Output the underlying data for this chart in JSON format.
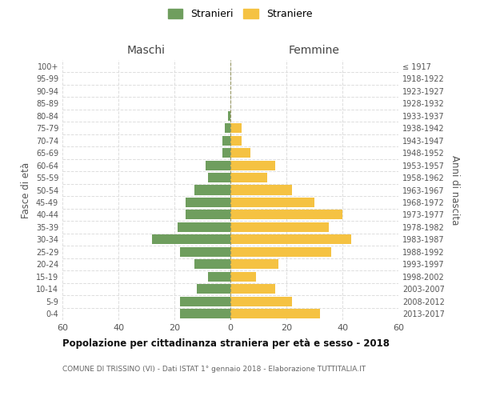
{
  "age_groups": [
    "0-4",
    "5-9",
    "10-14",
    "15-19",
    "20-24",
    "25-29",
    "30-34",
    "35-39",
    "40-44",
    "45-49",
    "50-54",
    "55-59",
    "60-64",
    "65-69",
    "70-74",
    "75-79",
    "80-84",
    "85-89",
    "90-94",
    "95-99",
    "100+"
  ],
  "birth_years": [
    "2013-2017",
    "2008-2012",
    "2003-2007",
    "1998-2002",
    "1993-1997",
    "1988-1992",
    "1983-1987",
    "1978-1982",
    "1973-1977",
    "1968-1972",
    "1963-1967",
    "1958-1962",
    "1953-1957",
    "1948-1952",
    "1943-1947",
    "1938-1942",
    "1933-1937",
    "1928-1932",
    "1923-1927",
    "1918-1922",
    "≤ 1917"
  ],
  "maschi": [
    18,
    18,
    12,
    8,
    13,
    18,
    28,
    19,
    16,
    16,
    13,
    8,
    9,
    3,
    3,
    2,
    1,
    0,
    0,
    0,
    0
  ],
  "femmine": [
    32,
    22,
    16,
    9,
    17,
    36,
    43,
    35,
    40,
    30,
    22,
    13,
    16,
    7,
    4,
    4,
    0,
    0,
    0,
    0,
    0
  ],
  "color_maschi": "#6f9e5e",
  "color_femmine": "#f5c242",
  "title": "Popolazione per cittadinanza straniera per età e sesso - 2018",
  "subtitle": "COMUNE DI TRISSINO (VI) - Dati ISTAT 1° gennaio 2018 - Elaborazione TUTTITALIA.IT",
  "xlabel_left": "Maschi",
  "xlabel_right": "Femmine",
  "ylabel_left": "Fasce di età",
  "ylabel_right": "Anni di nascita",
  "legend_maschi": "Stranieri",
  "legend_femmine": "Straniere",
  "xlim": 60,
  "background_color": "#ffffff",
  "grid_color": "#dddddd"
}
